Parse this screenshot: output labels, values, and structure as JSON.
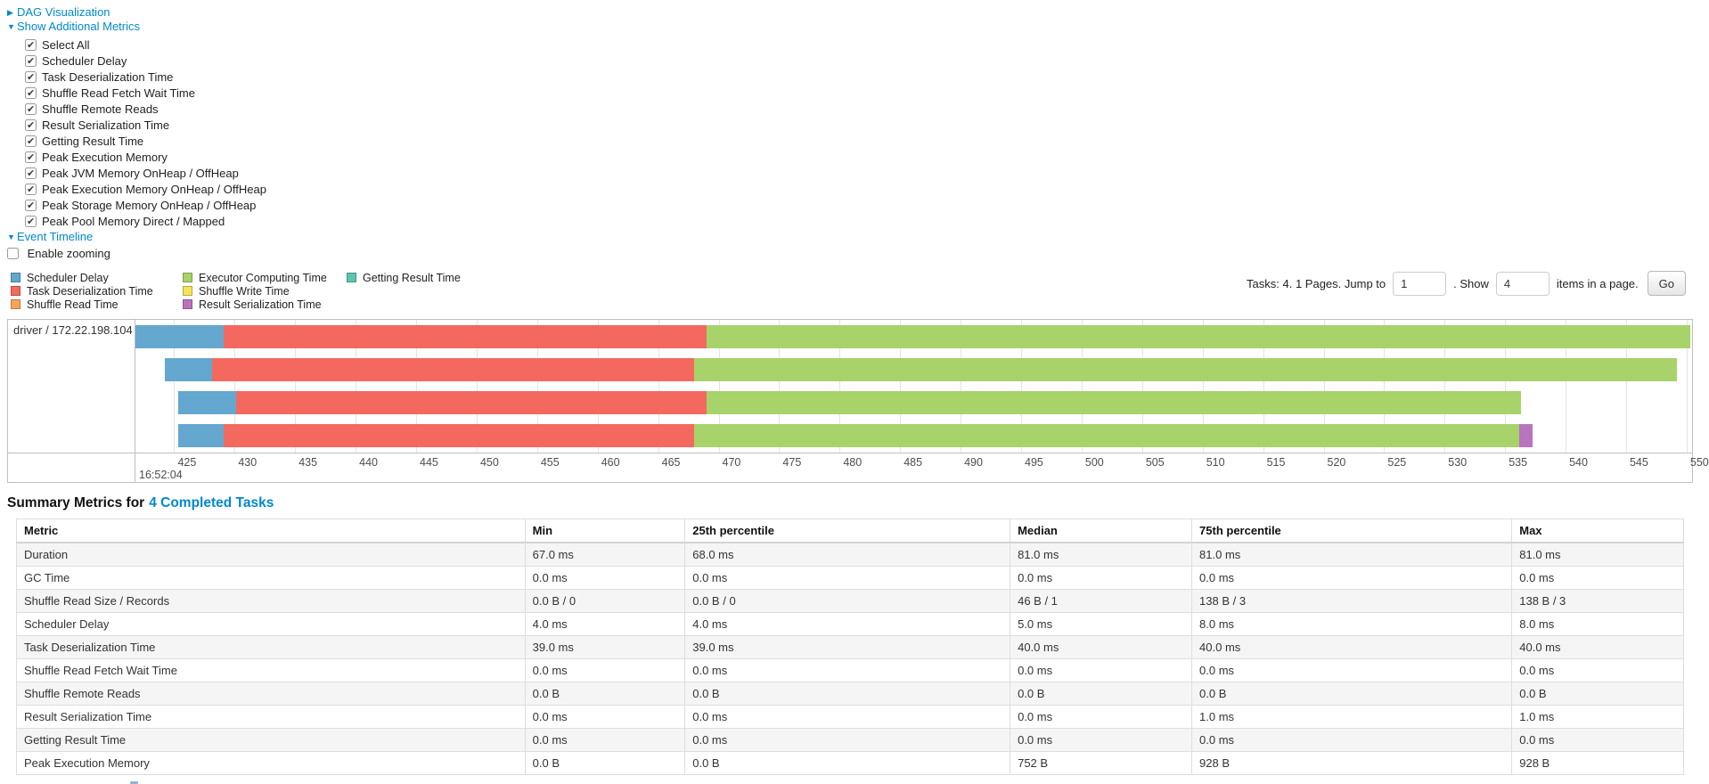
{
  "links": {
    "dag": "DAG Visualization",
    "metrics": "Show Additional Metrics",
    "timeline": "Event Timeline"
  },
  "metrics_checkboxes": [
    "Select All",
    "Scheduler Delay",
    "Task Deserialization Time",
    "Shuffle Read Fetch Wait Time",
    "Shuffle Remote Reads",
    "Result Serialization Time",
    "Getting Result Time",
    "Peak Execution Memory",
    "Peak JVM Memory OnHeap / OffHeap",
    "Peak Execution Memory OnHeap / OffHeap",
    "Peak Storage Memory OnHeap / OffHeap",
    "Peak Pool Memory Direct / Mapped"
  ],
  "enable_zooming_label": "Enable zooming",
  "legend_columns": [
    [
      {
        "label": "Scheduler Delay",
        "color": "#64a7cf"
      },
      {
        "label": "Task Deserialization Time",
        "color": "#f4695f"
      },
      {
        "label": "Shuffle Read Time",
        "color": "#f8a35b"
      }
    ],
    [
      {
        "label": "Executor Computing Time",
        "color": "#a7d36a"
      },
      {
        "label": "Shuffle Write Time",
        "color": "#f3e35b"
      },
      {
        "label": "Result Serialization Time",
        "color": "#b974be"
      }
    ],
    [
      {
        "label": "Getting Result Time",
        "color": "#5fc4ae"
      }
    ]
  ],
  "pagination": {
    "prefix": "Tasks: 4. 1 Pages. Jump to",
    "jump_value": "1",
    "mid": ". Show",
    "show_value": "4",
    "suffix": "items in a page.",
    "go_label": "Go"
  },
  "chart_data": {
    "type": "timeline",
    "group_label": "driver / 172.22.198.104",
    "axis": {
      "window_start": 421.8,
      "window_end": 550.45,
      "tick_first": 425,
      "tick_last": 550,
      "tick_step": 5,
      "major_label": "16:52:04",
      "grid": true
    },
    "tasks": [
      {
        "segments": [
          {
            "metric": "Scheduler Delay",
            "start": 421.8,
            "end": 429.1
          },
          {
            "metric": "Task Deserialization Time",
            "start": 429.1,
            "end": 469.0
          },
          {
            "metric": "Executor Computing Time",
            "start": 469.0,
            "end": 550.3
          }
        ]
      },
      {
        "segments": [
          {
            "metric": "Scheduler Delay",
            "start": 424.2,
            "end": 428.1
          },
          {
            "metric": "Task Deserialization Time",
            "start": 428.1,
            "end": 468.0
          },
          {
            "metric": "Executor Computing Time",
            "start": 468.0,
            "end": 549.2
          }
        ]
      },
      {
        "segments": [
          {
            "metric": "Scheduler Delay",
            "start": 425.3,
            "end": 430.1
          },
          {
            "metric": "Task Deserialization Time",
            "start": 430.1,
            "end": 469.0
          },
          {
            "metric": "Executor Computing Time",
            "start": 469.0,
            "end": 536.3
          }
        ]
      },
      {
        "segments": [
          {
            "metric": "Scheduler Delay",
            "start": 425.3,
            "end": 429.1
          },
          {
            "metric": "Task Deserialization Time",
            "start": 429.1,
            "end": 468.0
          },
          {
            "metric": "Executor Computing Time",
            "start": 468.0,
            "end": 536.2
          },
          {
            "metric": "Result Serialization Time",
            "start": 536.2,
            "end": 537.3
          }
        ]
      }
    ]
  },
  "summary": {
    "title_prefix": "Summary Metrics for",
    "title_link": "4 Completed Tasks",
    "headers": [
      "Metric",
      "Min",
      "25th percentile",
      "Median",
      "75th percentile",
      "Max"
    ],
    "rows": [
      [
        "Duration",
        "67.0 ms",
        "68.0 ms",
        "81.0 ms",
        "81.0 ms",
        "81.0 ms"
      ],
      [
        "GC Time",
        "0.0 ms",
        "0.0 ms",
        "0.0 ms",
        "0.0 ms",
        "0.0 ms"
      ],
      [
        "Shuffle Read Size / Records",
        "0.0 B / 0",
        "0.0 B / 0",
        "46 B / 1",
        "138 B / 3",
        "138 B / 3"
      ],
      [
        "Scheduler Delay",
        "4.0 ms",
        "4.0 ms",
        "5.0 ms",
        "8.0 ms",
        "8.0 ms"
      ],
      [
        "Task Deserialization Time",
        "39.0 ms",
        "39.0 ms",
        "40.0 ms",
        "40.0 ms",
        "40.0 ms"
      ],
      [
        "Shuffle Read Fetch Wait Time",
        "0.0 ms",
        "0.0 ms",
        "0.0 ms",
        "0.0 ms",
        "0.0 ms"
      ],
      [
        "Shuffle Remote Reads",
        "0.0 B",
        "0.0 B",
        "0.0 B",
        "0.0 B",
        "0.0 B"
      ],
      [
        "Result Serialization Time",
        "0.0 ms",
        "0.0 ms",
        "0.0 ms",
        "1.0 ms",
        "1.0 ms"
      ],
      [
        "Getting Result Time",
        "0.0 ms",
        "0.0 ms",
        "0.0 ms",
        "0.0 ms",
        "0.0 ms"
      ],
      [
        "Peak Execution Memory",
        "0.0 B",
        "0.0 B",
        "752 B",
        "928 B",
        "928 B"
      ]
    ]
  },
  "colors": {
    "link": "#0088cc",
    "timeline_border": "#bfbfbf",
    "gridline": "#e4e4e4",
    "table_border": "#dddddd",
    "stripe_row": "#f5f5f5"
  }
}
